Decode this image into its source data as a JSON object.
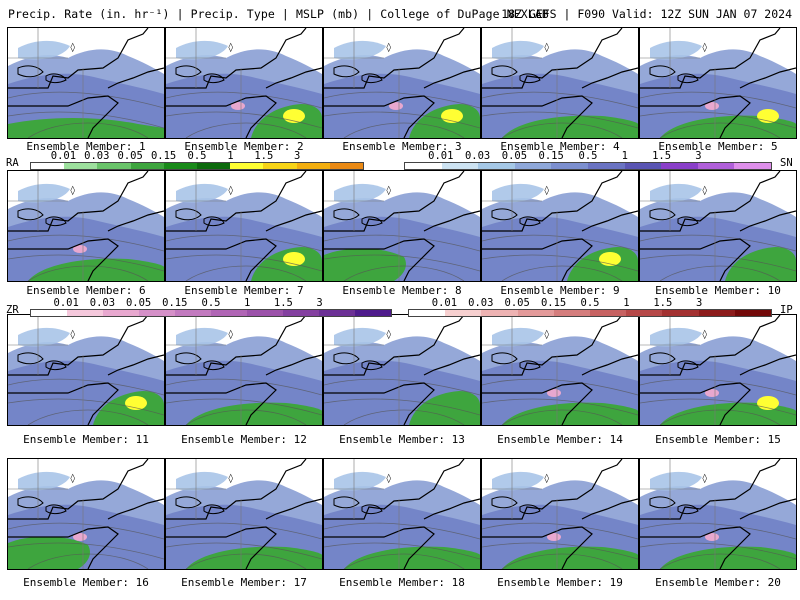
{
  "header": {
    "left": "Precip. Rate (in. hr⁻¹) | Precip. Type | MSLP (mb) | College of DuPage NEXLAB",
    "right": "18Z GEFS | F090 Valid: 12Z SUN JAN 07 2024"
  },
  "members": [
    "Ensemble Member: 1",
    "Ensemble Member: 2",
    "Ensemble Member: 3",
    "Ensemble Member: 4",
    "Ensemble Member: 5",
    "Ensemble Member: 6",
    "Ensemble Member: 7",
    "Ensemble Member: 8",
    "Ensemble Member: 9",
    "Ensemble Member: 10",
    "Ensemble Member: 11",
    "Ensemble Member: 12",
    "Ensemble Member: 13",
    "Ensemble Member: 14",
    "Ensemble Member: 15",
    "Ensemble Member: 16",
    "Ensemble Member: 17",
    "Ensemble Member: 18",
    "Ensemble Member: 19",
    "Ensemble Member: 20"
  ],
  "legends": {
    "rain": {
      "code": "RA",
      "ticks": [
        "0.01",
        "0.03",
        "0.05",
        "0.15",
        "0.5",
        "1",
        "1.5",
        "3"
      ],
      "colors": [
        "#ffffff",
        "#9de09d",
        "#69c369",
        "#3ea53e",
        "#198a19",
        "#0c6a0c",
        "#ffff33",
        "#f7d417",
        "#f2ae0f",
        "#eb8a14"
      ]
    },
    "snow": {
      "code": "SN",
      "ticks": [
        "0.01",
        "0.03",
        "0.05",
        "0.15",
        "0.5",
        "1",
        "1.5",
        "3"
      ],
      "colors": [
        "#ffffff",
        "#cde3f2",
        "#a5c8e6",
        "#8fa8d9",
        "#7c8fcf",
        "#6a73c2",
        "#5a55b3",
        "#8a3fc9",
        "#b05fd9",
        "#de8fea"
      ]
    },
    "freezing_rain": {
      "code": "ZR",
      "ticks": [
        "0.01",
        "0.03",
        "0.05",
        "0.15",
        "0.5",
        "1",
        "1.5",
        "3"
      ],
      "colors": [
        "#ffffff",
        "#f5c8dc",
        "#e8a8cf",
        "#d590c8",
        "#c27abf",
        "#b065b5",
        "#9c52aa",
        "#8440a0",
        "#6c3095",
        "#4f1c8c"
      ]
    },
    "ice_pellets": {
      "code": "IP",
      "ticks": [
        "0.01",
        "0.03",
        "0.05",
        "0.15",
        "0.5",
        "1",
        "1.5",
        "3"
      ],
      "colors": [
        "#ffffff",
        "#f7d0d0",
        "#eeb3b3",
        "#e39a9a",
        "#d47d7d",
        "#c76262",
        "#b64848",
        "#a33131",
        "#8c1c1c",
        "#730909"
      ]
    }
  }
}
